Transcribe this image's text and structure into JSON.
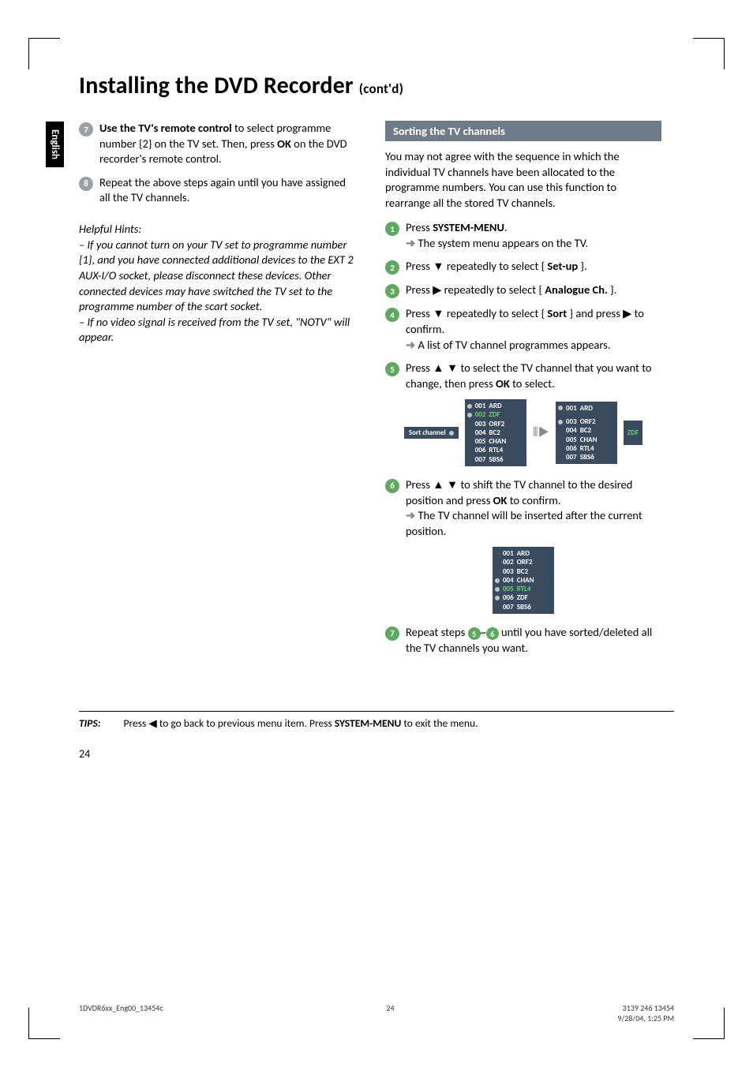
{
  "page": {
    "side_tab": "English",
    "title_main": "Installing the DVD Recorder",
    "title_cont": "(cont'd)",
    "page_number": "24"
  },
  "left": {
    "step7": {
      "num": "7",
      "body_prefix": "Use the TV's remote control",
      "body_rest": " to select programme number {2} on the TV set. Then, press ",
      "ok": "OK",
      "body_rest2": " on the DVD recorder's remote control."
    },
    "step8": {
      "num": "8",
      "body": "Repeat the above steps again until you have assigned all the TV channels."
    },
    "hints_head": "Helpful Hints:",
    "hints_body": "– If you cannot turn on your TV set to programme number {1}, and you have connected additional devices to the EXT 2 AUX-I/O socket, please disconnect these devices. Other connected devices may have switched the TV set to the programme number of the scart socket.\n– If no video signal is received from the TV set, \"NOTV\" will appear."
  },
  "right": {
    "section_title": "Sorting the TV channels",
    "intro": "You may not agree with the sequence in which the individual TV channels have been allocated to the programme numbers.  You can use this function to rearrange all the stored TV channels.",
    "s1": {
      "num": "1",
      "pre": "Press ",
      "bold": "SYSTEM-MENU",
      "post": ".",
      "arrow": "The system menu appears on the TV."
    },
    "s2": {
      "num": "2",
      "pre": "Press ▼ repeatedly to select { ",
      "bold": "Set-up",
      "post": " }."
    },
    "s3": {
      "num": "3",
      "pre": "Press ▶ repeatedly to select { ",
      "bold": "Analogue Ch.",
      "post": " }."
    },
    "s4": {
      "num": "4",
      "pre": "Press ▼ repeatedly to select { ",
      "bold": "Sort",
      "post": " } and press ▶ to confirm.",
      "arrow": "A list of TV channel programmes appears."
    },
    "s5": {
      "num": "5",
      "pre": "Press ▲ ▼ to select the TV channel that you want to change, then press ",
      "bold": "OK",
      "post": " to select."
    },
    "s6": {
      "num": "6",
      "pre": "Press ▲ ▼ to shift the TV channel to the desired position and press ",
      "bold": "OK",
      "post": " to confirm.",
      "arrow": "The TV channel will be inserted after the current position."
    },
    "s7": {
      "num": "7",
      "pre": "Repeat steps ",
      "mid": "~",
      "post": " until you have sorted/deleted all the TV channels you want.",
      "a": "5",
      "b": "6"
    }
  },
  "tv1": {
    "label": "Sort channel",
    "listA": [
      {
        "n": "001",
        "c": "ARD",
        "hl": false,
        "mk": true
      },
      {
        "n": "002",
        "c": "ZDF",
        "hl": true,
        "mk": true
      },
      {
        "n": "003",
        "c": "ORF2",
        "hl": false,
        "mk": false
      },
      {
        "n": "004",
        "c": "BC2",
        "hl": false,
        "mk": false
      },
      {
        "n": "005",
        "c": "CHAN",
        "hl": false,
        "mk": false
      },
      {
        "n": "006",
        "c": "RTL4",
        "hl": false,
        "mk": false
      },
      {
        "n": "007",
        "c": "SBS6",
        "hl": false,
        "mk": false
      }
    ],
    "listB": [
      {
        "n": "001",
        "c": "ARD",
        "hl": false,
        "mk": true
      },
      {
        "n": "",
        "c": "",
        "hl": false,
        "mk": false
      },
      {
        "n": "003",
        "c": "ORF2",
        "hl": false,
        "mk": true
      },
      {
        "n": "004",
        "c": "BC2",
        "hl": false,
        "mk": false
      },
      {
        "n": "005",
        "c": "CHAN",
        "hl": false,
        "mk": false
      },
      {
        "n": "006",
        "c": "RTL4",
        "hl": false,
        "mk": false
      },
      {
        "n": "007",
        "c": "SBS6",
        "hl": false,
        "mk": false
      }
    ],
    "side": "ZDF"
  },
  "tv2": [
    {
      "n": "001",
      "c": "ARD",
      "hl": false,
      "mk": false
    },
    {
      "n": "002",
      "c": "ORF2",
      "hl": false,
      "mk": false
    },
    {
      "n": "003",
      "c": "BC2",
      "hl": false,
      "mk": false
    },
    {
      "n": "004",
      "c": "CHAN",
      "hl": false,
      "mk": true
    },
    {
      "n": "005",
      "c": "RTL4",
      "hl": true,
      "mk": true
    },
    {
      "n": "006",
      "c": "ZDF",
      "hl": false,
      "mk": true
    },
    {
      "n": "007",
      "c": "SBS6",
      "hl": false,
      "mk": false
    }
  ],
  "tips": {
    "label": "TIPS:",
    "body_pre": "Press ◀ to go back to previous menu item.  Press ",
    "bold": "SYSTEM-MENU",
    "body_post": " to exit the menu."
  },
  "footer": {
    "left": "1DVDR6xx_Eng00_13454c",
    "mid": "24",
    "right_top": "3139 246 13454",
    "right_bot": "9/28/04, 1:25 PM"
  },
  "colors": {
    "step_num_bg": "#9aa0a6",
    "step_num_green": "#5fa85f",
    "section_bar": "#6f7b88",
    "tv_bg": "#3b4b5f",
    "tv_hl": "#6fd06f"
  }
}
